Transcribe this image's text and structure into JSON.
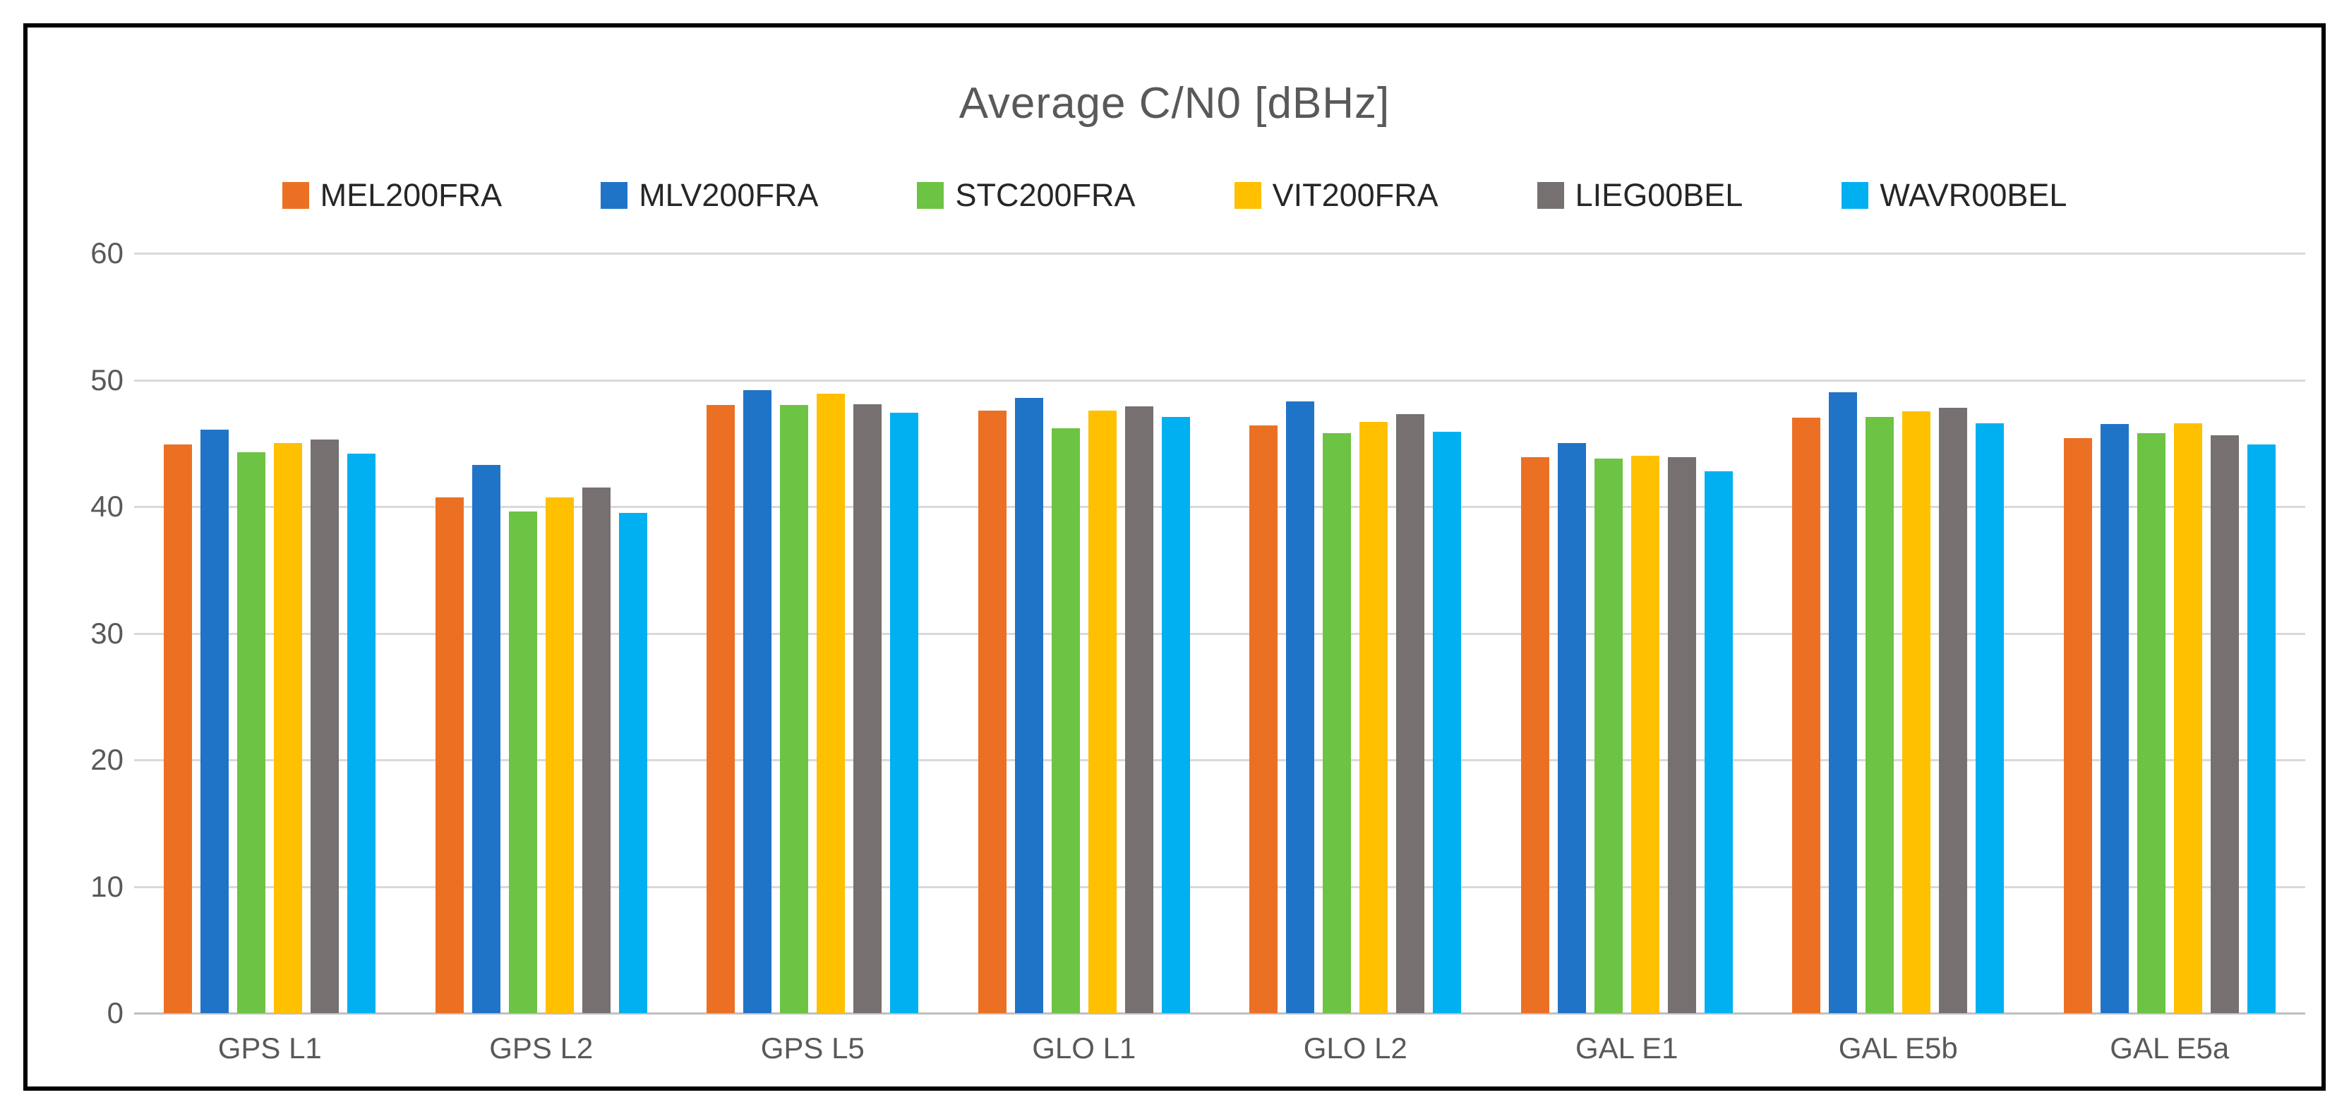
{
  "chart_data": {
    "type": "bar",
    "title": "Average C/N0 [dBHz]",
    "categories": [
      "GPS L1",
      "GPS L2",
      "GPS L5",
      "GLO L1",
      "GLO L2",
      "GAL E1",
      "GAL E5b",
      "GAL E5a"
    ],
    "series": [
      {
        "name": "MEL200FRA",
        "color": "#EC7024",
        "values": [
          44.9,
          40.7,
          48.0,
          47.6,
          46.4,
          43.9,
          47.0,
          45.4
        ]
      },
      {
        "name": "MLV200FRA",
        "color": "#2074C7",
        "values": [
          46.1,
          43.3,
          49.2,
          48.6,
          48.3,
          45.0,
          49.0,
          46.5
        ]
      },
      {
        "name": "STC200FRA",
        "color": "#6DC343",
        "values": [
          44.3,
          39.6,
          48.0,
          46.2,
          45.8,
          43.8,
          47.1,
          45.8
        ]
      },
      {
        "name": "VIT200FRA",
        "color": "#FFC000",
        "values": [
          45.0,
          40.7,
          48.9,
          47.6,
          46.7,
          44.0,
          47.5,
          46.6
        ]
      },
      {
        "name": "LIEG00BEL",
        "color": "#767070",
        "values": [
          45.3,
          41.5,
          48.1,
          47.9,
          47.3,
          43.9,
          47.8,
          45.6
        ]
      },
      {
        "name": "WAVR00BEL",
        "color": "#00B0F0",
        "values": [
          44.2,
          39.5,
          47.4,
          47.1,
          45.9,
          42.8,
          46.6,
          44.9
        ]
      }
    ],
    "ylim": [
      0,
      60
    ],
    "yticks": [
      0,
      10,
      20,
      30,
      40,
      50,
      60
    ],
    "grid": "horizontal",
    "legend_position": "top",
    "colors": {
      "grid_line": "#d9d9d9",
      "axis_line": "#bfbfbf",
      "tick_text": "#595959",
      "title_text": "#595959",
      "legend_text": "#262626",
      "frame_border": "#000000",
      "background": "#ffffff"
    }
  }
}
